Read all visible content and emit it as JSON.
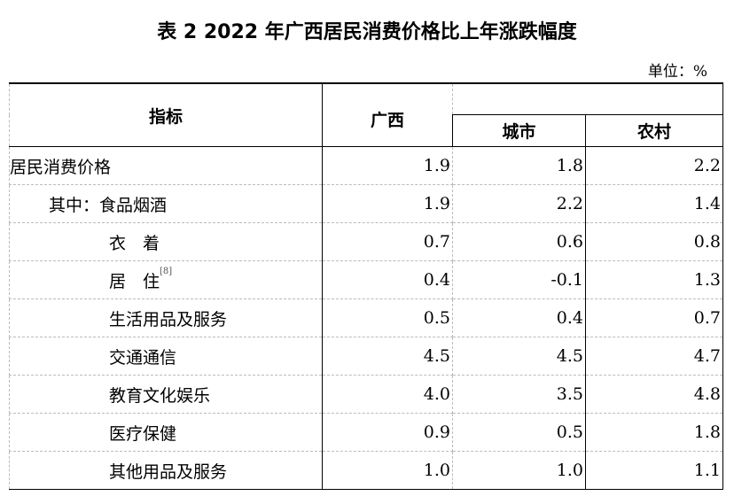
{
  "title": "表 2  2022 年广西居民消费价格比上年涨跌幅度",
  "unit": "单位：%",
  "headers": {
    "indicator": "指标",
    "guangxi": "广西",
    "urban": "城市",
    "rural": "农村"
  },
  "rows": [
    {
      "label": "居民消费价格",
      "indent": 0,
      "guangxi": "1.9",
      "urban": "1.8",
      "rural": "2.2"
    },
    {
      "label": "其中：食品烟酒",
      "indent": 1,
      "guangxi": "1.9",
      "urban": "2.2",
      "rural": "1.4"
    },
    {
      "label": "衣　着",
      "indent": 2,
      "guangxi": "0.7",
      "urban": "0.6",
      "rural": "0.8"
    },
    {
      "label": "居　住",
      "indent": 2,
      "note": "[8]",
      "guangxi": "0.4",
      "urban": "-0.1",
      "rural": "1.3"
    },
    {
      "label": "生活用品及服务",
      "indent": 2,
      "guangxi": "0.5",
      "urban": "0.4",
      "rural": "0.7"
    },
    {
      "label": "交通通信",
      "indent": 2,
      "guangxi": "4.5",
      "urban": "4.5",
      "rural": "4.7"
    },
    {
      "label": "教育文化娱乐",
      "indent": 2,
      "guangxi": "4.0",
      "urban": "3.5",
      "rural": "4.8"
    },
    {
      "label": "医疗保健",
      "indent": 2,
      "guangxi": "0.9",
      "urban": "0.5",
      "rural": "1.8"
    },
    {
      "label": "其他用品及服务",
      "indent": 2,
      "guangxi": "1.0",
      "urban": "1.0",
      "rural": "1.1"
    }
  ]
}
